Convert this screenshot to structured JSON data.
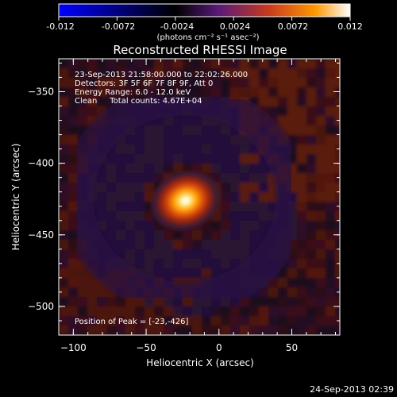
{
  "chart_data": {
    "type": "heatmap",
    "title": "Reconstructed RHESSI Image",
    "xlabel": "Heliocentric X (arcsec)",
    "ylabel": "Heliocentric Y (arcsec)",
    "xlim": [
      -110,
      83
    ],
    "ylim": [
      -520,
      -327
    ],
    "xticks": [
      -100,
      -50,
      0,
      50
    ],
    "yticks": [
      -350,
      -400,
      -450,
      -500
    ],
    "colorbar": {
      "range": [
        -0.012,
        0.012
      ],
      "tick_values": [
        -0.012,
        -0.0072,
        -0.0024,
        0.0024,
        0.0072,
        0.012
      ],
      "tick_labels": [
        "-0.012",
        "-0.0072",
        "-0.0024",
        "0.0024",
        "0.0072",
        "0.012"
      ],
      "units_label": "(photons cm⁻² s⁻¹ asec⁻²)",
      "colormap": [
        "#0000ff",
        "#000000",
        "#6a1e8a",
        "#d1421a",
        "#ff9a00",
        "#ffffff"
      ]
    },
    "annotations": [
      "23-Sep-2013 21:58:00.000 to 22:02:26.000",
      "Detectors: 3F 5F 6F 7F 8F 9F, Att 0",
      "Energy Range: 6.0 - 12.0 keV",
      "Clean     Total counts: 4.67E+04"
    ],
    "peak": {
      "label": "Position of Peak = [-23,-426]",
      "x": -23,
      "y": -426,
      "value": 0.012
    },
    "timestamp": "24-Sep-2013 02:39"
  }
}
